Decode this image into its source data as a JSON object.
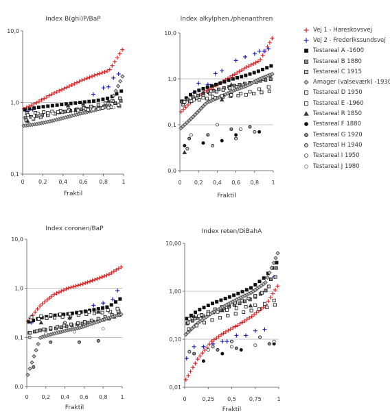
{
  "xlabel": "Fraktil",
  "series_styles": [
    {
      "name": "Vej 1 - Hareskovsvej",
      "marker": "plus",
      "color": "#d62728"
    },
    {
      "name": "Vej 2 - Frederikssundsvej",
      "marker": "plus",
      "color": "#1f1fb4"
    },
    {
      "name": "Testareal A -1600",
      "marker": "square",
      "fill": "#111111",
      "stroke": "#111111"
    },
    {
      "name": "Testareal B 1880",
      "marker": "square",
      "fill": "#888888",
      "stroke": "#111111"
    },
    {
      "name": "Testareal C 1915",
      "marker": "square",
      "fill": "#d0d0d0",
      "stroke": "#111111"
    },
    {
      "name": "Amager (valseværk) -1930",
      "marker": "diamond",
      "fill": "#bbbbbb",
      "stroke": "#444444"
    },
    {
      "name": "Testareal D 1950",
      "marker": "square",
      "fill": "#eeeeee",
      "stroke": "#111111"
    },
    {
      "name": "Testareal E -1960",
      "marker": "square",
      "fill": "#ffffff",
      "stroke": "#111111"
    },
    {
      "name": "Testareal R 1850",
      "marker": "triangle",
      "fill": "#333333",
      "stroke": "#333333"
    },
    {
      "name": "Testareal F 1880",
      "marker": "circle",
      "fill": "#111111",
      "stroke": "#111111"
    },
    {
      "name": "Testareal G 1920",
      "marker": "circle",
      "fill": "#888888",
      "stroke": "#111111"
    },
    {
      "name": "Testareal H 1940",
      "marker": "circle",
      "fill": "#cccccc",
      "stroke": "#111111"
    },
    {
      "name": "Testareal I 1950",
      "marker": "circle",
      "fill": "#ffffff",
      "stroke": "#333333"
    },
    {
      "name": "Testareal J 1980",
      "marker": "circle",
      "fill": "#ffffff",
      "stroke": "#777777"
    }
  ],
  "chart_data": [
    {
      "type": "scatter",
      "title": "Index B(ghi)P/BaP",
      "xlabel": "Fraktil",
      "ylabel": "",
      "xlim": [
        0,
        1
      ],
      "ylim": [
        0.1,
        10
      ],
      "yscale": "log",
      "xticks": [
        0,
        0.2,
        0.4,
        0.6,
        0.8,
        1
      ],
      "xtick_labels": [
        "0",
        "0,2",
        "0,4",
        "0,6",
        "0,8",
        "1"
      ],
      "yticks": [
        0.1,
        1,
        10
      ],
      "ytick_labels": [
        "0,1",
        "1,0",
        "10,0"
      ],
      "gridlines_y": [
        1
      ],
      "series": [
        {
          "name": "Vej 1 - Hareskovsvej",
          "profile": [
            0.8,
            1.0,
            1.3,
            1.6,
            2.0,
            2.4,
            2.8,
            5.8
          ],
          "n": 40
        },
        {
          "name": "Vej 2 - Frederikssundsvej",
          "x": [
            0.05,
            0.1,
            0.7,
            0.8,
            0.85,
            0.9,
            0.95
          ],
          "y": [
            0.75,
            0.8,
            1.3,
            1.6,
            1.65,
            2.2,
            2.5
          ]
        },
        {
          "name": "Testareal A -1600",
          "profile": [
            0.78,
            0.85,
            0.9,
            0.95,
            1.0,
            1.05,
            1.15,
            1.5
          ],
          "n": 22
        },
        {
          "name": "Testareal B 1880",
          "profile": [
            0.6,
            0.65,
            0.7,
            0.75,
            0.8,
            0.85,
            0.9,
            1.1
          ],
          "n": 18
        },
        {
          "name": "Testareal C 1915",
          "profile": [
            0.55,
            0.6,
            0.68,
            0.75,
            0.82,
            0.9,
            1.0,
            1.2
          ],
          "n": 14
        },
        {
          "name": "Amager (valseværk) -1930",
          "profile": [
            0.47,
            0.5,
            0.55,
            0.62,
            0.7,
            0.78,
            0.9,
            2.5
          ],
          "n": 46
        },
        {
          "name": "Testareal D 1950",
          "profile": [
            0.7,
            0.72,
            0.75,
            0.78,
            0.8,
            0.83,
            0.85,
            0.9
          ],
          "n": 12
        },
        {
          "name": "Testareal E -1960",
          "profile": [
            0.65,
            0.7,
            0.72,
            0.75,
            0.78,
            0.8,
            0.85,
            0.95
          ],
          "n": 10
        },
        {
          "name": "Testareal R 1850",
          "x": [
            0.05,
            0.45,
            0.6,
            0.85
          ],
          "y": [
            0.55,
            0.9,
            0.95,
            1.05
          ]
        },
        {
          "name": "Testareal J 1980",
          "x": [
            0.1,
            0.3,
            0.5,
            0.7,
            0.9
          ],
          "y": [
            0.6,
            0.7,
            0.72,
            0.8,
            0.85
          ]
        }
      ]
    },
    {
      "type": "scatter",
      "title": "Index alkylphen./phenanthren",
      "xlabel": "Fraktil",
      "ylabel": "",
      "xlim": [
        0,
        1
      ],
      "ylim": [
        0.01,
        10
      ],
      "yscale": "log",
      "xticks": [
        0,
        0.2,
        0.4,
        0.6,
        0.8,
        1
      ],
      "xtick_labels": [
        "0",
        "0,2",
        "0,4",
        "0,6",
        "0,8",
        "1"
      ],
      "yticks": [
        0.01,
        0.1,
        1,
        10
      ],
      "ytick_labels": [
        "0,0",
        "0,1",
        "1,0",
        "10,0"
      ],
      "gridlines_y": [
        0.1,
        1
      ],
      "series": [
        {
          "name": "Vej 1 - Hareskovsvej",
          "profile": [
            0.18,
            0.35,
            0.55,
            0.8,
            1.2,
            1.8,
            2.5,
            8.5
          ],
          "n": 40
        },
        {
          "name": "Vej 2 - Frederikssundsvej",
          "x": [
            0.15,
            0.2,
            0.3,
            0.38,
            0.45,
            0.6,
            0.7,
            0.8,
            0.85,
            0.9,
            0.95
          ],
          "y": [
            0.5,
            0.8,
            0.75,
            1.3,
            1.5,
            2.5,
            3.0,
            3.5,
            4.0,
            4.0,
            4.5
          ]
        },
        {
          "name": "Testareal A -1600",
          "profile": [
            0.3,
            0.5,
            0.65,
            0.8,
            1.0,
            1.2,
            1.5,
            2.0
          ],
          "n": 22
        },
        {
          "name": "Testareal B 1880",
          "profile": [
            0.3,
            0.4,
            0.5,
            0.6,
            0.7,
            0.8,
            0.9,
            1.0
          ],
          "n": 18
        },
        {
          "name": "Testareal C 1915",
          "profile": [
            0.25,
            0.35,
            0.45,
            0.55,
            0.65,
            0.75,
            0.9,
            1.3
          ],
          "n": 14
        },
        {
          "name": "Amager (valseværk) -1930",
          "profile": [
            0.08,
            0.15,
            0.3,
            0.4,
            0.55,
            0.7,
            1.0,
            1.3
          ],
          "n": 46
        },
        {
          "name": "Testareal D 1950",
          "profile": [
            0.3,
            0.33,
            0.37,
            0.4,
            0.42,
            0.45,
            0.5,
            0.55
          ],
          "n": 12
        },
        {
          "name": "Testareal E -1960",
          "profile": [
            0.3,
            0.35,
            0.4,
            0.42,
            0.45,
            0.5,
            0.6,
            0.7
          ],
          "n": 10
        },
        {
          "name": "Testareal R 1850",
          "x": [
            0.05,
            0.25,
            0.45,
            0.55
          ],
          "y": [
            0.025,
            0.5,
            0.35,
            0.75
          ]
        },
        {
          "name": "Testareal F 1880",
          "x": [
            0.05,
            0.25,
            0.45,
            0.6,
            0.85
          ],
          "y": [
            0.035,
            0.04,
            0.045,
            0.06,
            0.07
          ]
        },
        {
          "name": "Testareal G 1920",
          "x": [
            0.1,
            0.3,
            0.55,
            0.75
          ],
          "y": [
            0.05,
            0.06,
            0.08,
            0.09
          ]
        },
        {
          "name": "Testareal H 1940",
          "x": [
            0.08,
            0.35,
            0.6,
            0.8
          ],
          "y": [
            0.03,
            0.035,
            0.05,
            0.07
          ]
        },
        {
          "name": "Testareal I 1950",
          "x": [
            0.12,
            0.4,
            0.65
          ],
          "y": [
            0.06,
            0.1,
            0.08
          ]
        }
      ]
    },
    {
      "type": "scatter",
      "title": "Index coronen/BaP",
      "xlabel": "Fraktil",
      "ylabel": "",
      "xlim": [
        0,
        1
      ],
      "ylim": [
        0.01,
        10
      ],
      "yscale": "log",
      "xticks": [
        0,
        0.2,
        0.4,
        0.6,
        0.8,
        1
      ],
      "xtick_labels": [
        "0",
        "0,2",
        "0,4",
        "0,6",
        "0,8",
        "1"
      ],
      "yticks": [
        0.01,
        0.1,
        1,
        10
      ],
      "ytick_labels": [
        "0,0",
        "0,1",
        "1,0",
        "10,0"
      ],
      "gridlines_y": [
        0.1,
        1
      ],
      "series": [
        {
          "name": "Vej 1 - Hareskovsvej",
          "profile": [
            0.2,
            0.45,
            0.75,
            1.0,
            1.2,
            1.5,
            1.9,
            2.8
          ],
          "n": 40
        },
        {
          "name": "Vej 2 - Frederikssundsvej",
          "x": [
            0.05,
            0.25,
            0.45,
            0.55,
            0.7,
            0.8,
            0.9,
            0.95
          ],
          "y": [
            0.2,
            0.28,
            0.25,
            0.3,
            0.45,
            0.5,
            0.6,
            0.9
          ]
        },
        {
          "name": "Testareal A -1600",
          "profile": [
            0.2,
            0.25,
            0.28,
            0.3,
            0.33,
            0.37,
            0.42,
            0.65
          ],
          "n": 22
        },
        {
          "name": "Testareal B 1880",
          "profile": [
            0.12,
            0.14,
            0.15,
            0.17,
            0.19,
            0.21,
            0.24,
            0.3
          ],
          "n": 18
        },
        {
          "name": "Testareal C 1915",
          "profile": [
            0.12,
            0.14,
            0.16,
            0.18,
            0.2,
            0.23,
            0.27,
            0.35
          ],
          "n": 14
        },
        {
          "name": "Amager (valseværk) -1930",
          "profile": [
            0.015,
            0.1,
            0.12,
            0.14,
            0.16,
            0.2,
            0.25,
            0.3
          ],
          "n": 46
        },
        {
          "name": "Testareal D 1950",
          "profile": [
            0.22,
            0.24,
            0.25,
            0.27,
            0.29,
            0.31,
            0.33,
            0.36
          ],
          "n": 12
        },
        {
          "name": "Testareal E -1960",
          "profile": [
            0.25,
            0.27,
            0.29,
            0.3,
            0.32,
            0.34,
            0.36,
            0.4
          ],
          "n": 10
        },
        {
          "name": "Testareal R 1850",
          "x": [
            0.15,
            0.45,
            0.75
          ],
          "y": [
            0.2,
            0.25,
            0.33
          ]
        },
        {
          "name": "Testareal G 1920",
          "x": [
            0.07,
            0.25,
            0.55,
            0.75
          ],
          "y": [
            0.025,
            0.08,
            0.08,
            0.085
          ]
        },
        {
          "name": "Testareal H 1940",
          "x": [
            0.03,
            0.4
          ],
          "y": [
            0.1,
            0.2
          ]
        },
        {
          "name": "Testareal J 1980",
          "x": [
            0.2,
            0.5,
            0.8
          ],
          "y": [
            0.12,
            0.13,
            0.15
          ]
        }
      ]
    },
    {
      "type": "scatter",
      "title": "Index reten/DiBahA",
      "xlabel": "Fraktil",
      "ylabel": "",
      "xlim": [
        0,
        1
      ],
      "ylim": [
        0.01,
        10
      ],
      "yscale": "log",
      "xticks": [
        0,
        0.25,
        0.5,
        0.75,
        1
      ],
      "xtick_labels": [
        "0",
        "0,25",
        "0,5",
        "0,75",
        "1"
      ],
      "yticks": [
        0.01,
        0.1,
        1,
        10
      ],
      "ytick_labels": [
        "0,01",
        "0,10",
        "1,00",
        "10,00"
      ],
      "gridlines_y": [
        0.1,
        1
      ],
      "series": [
        {
          "name": "Vej 1 - Hareskovsvej",
          "profile": [
            0.013,
            0.04,
            0.09,
            0.14,
            0.2,
            0.3,
            0.5,
            1.4
          ],
          "n": 40
        },
        {
          "name": "Vej 2 - Frederikssundsvej",
          "x": [
            0.02,
            0.1,
            0.2,
            0.3,
            0.4,
            0.45,
            0.55,
            0.65,
            0.75,
            0.85,
            0.95
          ],
          "y": [
            0.04,
            0.07,
            0.07,
            0.08,
            0.09,
            0.09,
            0.12,
            0.12,
            0.15,
            0.16,
            2.0
          ]
        },
        {
          "name": "Testareal A -1600",
          "profile": [
            0.25,
            0.4,
            0.55,
            0.7,
            0.9,
            1.2,
            2.0,
            4.5
          ],
          "n": 22
        },
        {
          "name": "Testareal B 1880",
          "profile": [
            0.2,
            0.28,
            0.35,
            0.45,
            0.55,
            0.7,
            1.0,
            4.0
          ],
          "n": 18
        },
        {
          "name": "Testareal C 1915",
          "profile": [
            0.2,
            0.3,
            0.4,
            0.5,
            0.6,
            0.75,
            1.0,
            2.5
          ],
          "n": 14
        },
        {
          "name": "Amager (valseværk) -1930",
          "profile": [
            0.12,
            0.22,
            0.35,
            0.5,
            0.7,
            0.95,
            1.5,
            7.0
          ],
          "n": 46
        },
        {
          "name": "Testareal D 1950",
          "profile": [
            0.15,
            0.2,
            0.25,
            0.3,
            0.35,
            0.4,
            0.45,
            0.55
          ],
          "n": 12
        },
        {
          "name": "Testareal E -1960",
          "profile": [
            0.25,
            0.3,
            0.35,
            0.4,
            0.45,
            0.5,
            0.55,
            0.7
          ],
          "n": 10
        },
        {
          "name": "Testareal R 1850",
          "x": [
            0.1,
            0.4,
            0.7
          ],
          "y": [
            0.3,
            0.4,
            0.5
          ]
        },
        {
          "name": "Testareal F 1880",
          "x": [
            0.2,
            0.4,
            0.6,
            0.95
          ],
          "y": [
            0.035,
            0.05,
            0.06,
            0.08
          ]
        },
        {
          "name": "Testareal G 1920",
          "x": [
            0.1,
            0.35,
            0.55,
            0.9
          ],
          "y": [
            0.05,
            0.06,
            0.065,
            0.08
          ]
        },
        {
          "name": "Testareal H 1940",
          "x": [
            0.05,
            0.3,
            0.5,
            0.8
          ],
          "y": [
            0.055,
            0.07,
            0.09,
            0.11
          ]
        },
        {
          "name": "Testareal I 1950",
          "x": [
            0.25,
            0.5,
            0.75,
            0.95
          ],
          "y": [
            0.06,
            0.07,
            0.075,
            0.09
          ]
        }
      ]
    }
  ]
}
